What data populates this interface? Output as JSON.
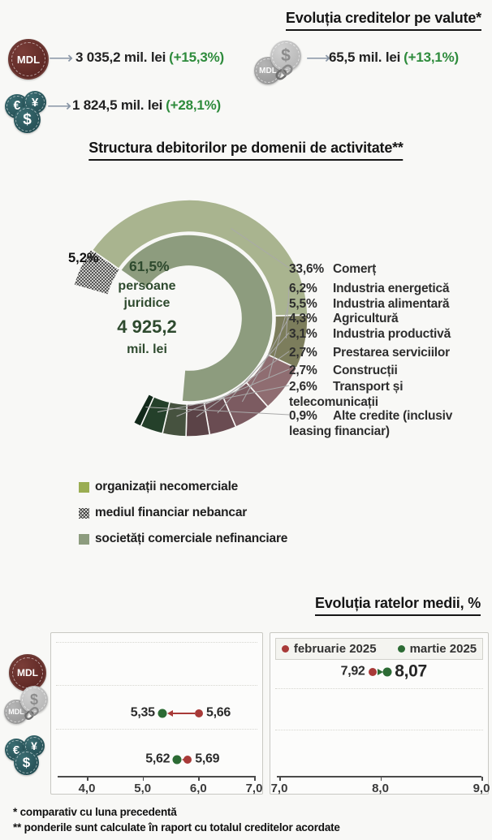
{
  "icons": {
    "mdl": "MDL",
    "usd": "$",
    "eur": "€",
    "yen": "¥"
  },
  "credit_section": {
    "title": "Evoluția creditelor pe valute*",
    "items": [
      {
        "icon": "mdl-coin",
        "value": "3 035,2 mil. lei",
        "change": "(+15,3%)"
      },
      {
        "icon": "mdl-usd-linked-coins",
        "value": "65,5 mil. lei",
        "change": "(+13,1%)"
      },
      {
        "icon": "foreign-currency-coins",
        "value": "1 824,5 mil. lei",
        "change": "(+28,1%)"
      }
    ]
  },
  "structure_section": {
    "title": "Structura debitorilor pe domenii de activitate**",
    "center": {
      "line1": "persoane",
      "line2": "juridice",
      "value": "4 925,2",
      "unit": "mil. lei"
    },
    "inner_share_label": "61,5%",
    "hatched_share_label": "5,2%",
    "legend": [
      {
        "label": "organizații necomerciale",
        "swatch": "#9aad52"
      },
      {
        "label": "mediul financiar nebancar",
        "swatch": "hatched"
      },
      {
        "label": "societăți comerciale nefinanciare",
        "swatch": "#8d9c7e"
      }
    ]
  },
  "rates_section": {
    "title": "Evoluția ratelor medii, %",
    "legend": [
      {
        "label": "februarie 2025",
        "color": "#a83a38"
      },
      {
        "label": "martie 2025",
        "color": "#2c6b34"
      }
    ]
  },
  "footnotes": [
    "* comparativ cu luna precedentă",
    "** ponderile sunt calculate în raport cu totalul creditelor acordate"
  ],
  "chart_data": [
    {
      "type": "donut",
      "title": "Structura debitorilor pe domenii de activitate**",
      "center_label": "persoane juridice 4 925,2 mil. lei",
      "inner_ring": {
        "categories": [
          "societăți comerciale nefinanciare",
          "mediul financiar nebancar"
        ],
        "values": [
          61.5,
          5.2
        ],
        "labels": [
          "61,5%",
          "5,2%"
        ],
        "colors": [
          "#8d9c7e",
          "hatched"
        ]
      },
      "outer_ring": {
        "categories": [
          "Comerț",
          "Industria energetică",
          "Industria alimentară",
          "Agricultură",
          "Industria productivă",
          "Prestarea serviciilor",
          "Construcții",
          "Transport și telecomunicații",
          "Alte credite (inclusiv leasing financiar)"
        ],
        "values": [
          33.6,
          6.2,
          5.5,
          4.3,
          3.1,
          2.7,
          2.7,
          2.6,
          0.9
        ],
        "labels": [
          "33,6%",
          "6,2%",
          "5,5%",
          "4,3%",
          "3,1%",
          "2,7%",
          "2,7%",
          "2,6%",
          "0,9%"
        ],
        "colors": [
          "#a9b48f",
          "#7c7d5c",
          "#8f6d71",
          "#7c5b61",
          "#6a4c52",
          "#5b4347",
          "#46523f",
          "#24402a",
          "#12291a"
        ]
      },
      "legend": [
        "organizații necomerciale",
        "mediul financiar nebancar",
        "societăți comerciale nefinanciare"
      ]
    },
    {
      "type": "dumbbell",
      "position": "left",
      "x_ticks": [
        "4,0",
        "5,0",
        "6,0",
        "7,0"
      ],
      "x_range": [
        4,
        7
      ],
      "series": [
        "februarie 2025",
        "martie 2025"
      ],
      "rows": [
        {
          "icon": "mdl-coin",
          "feb": null,
          "mar": null,
          "feb_label": "",
          "mar_label": ""
        },
        {
          "icon": "mdl-usd-linked-coins",
          "feb": 5.66,
          "mar": 5.35,
          "feb_label": "5,66",
          "mar_label": "5,35"
        },
        {
          "icon": "foreign-currency-coins",
          "feb": 5.69,
          "mar": 5.62,
          "feb_label": "5,69",
          "mar_label": "5,62"
        }
      ]
    },
    {
      "type": "dumbbell",
      "position": "right",
      "x_ticks": [
        "7,0",
        "8,0",
        "9,0"
      ],
      "x_range": [
        7,
        9
      ],
      "series": [
        "februarie 2025",
        "martie 2025"
      ],
      "rows": [
        {
          "icon": "mdl-coin",
          "feb": 7.92,
          "mar": 8.07,
          "feb_label": "7,92",
          "mar_label": "8,07"
        }
      ]
    }
  ]
}
